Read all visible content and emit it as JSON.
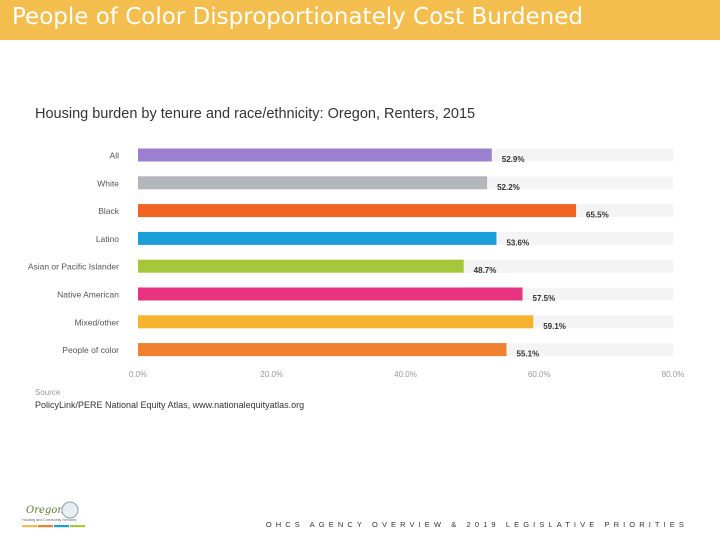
{
  "header": {
    "title": "People of Color Disproportionately Cost Burdened"
  },
  "chart_data": {
    "type": "bar",
    "orientation": "horizontal",
    "title": "Housing burden by tenure and race/ethnicity: Oregon, Renters, 2015",
    "categories": [
      "All",
      "White",
      "Black",
      "Latino",
      "Asian or Pacific Islander",
      "Native American",
      "Mixed/other",
      "People of color"
    ],
    "values": [
      52.9,
      52.2,
      65.5,
      53.6,
      48.7,
      57.5,
      59.1,
      55.1
    ],
    "value_labels": [
      "52.9%",
      "52.2%",
      "65.5%",
      "53.6%",
      "48.7%",
      "57.5%",
      "59.1%",
      "55.1%"
    ],
    "colors": [
      "#9b7fd0",
      "#b3b6bb",
      "#f26422",
      "#1a9fd8",
      "#a5c83a",
      "#e8337e",
      "#f6b42e",
      "#f07f2f"
    ],
    "xticks": [
      "0.0%",
      "20.0%",
      "40.0%",
      "60.0%",
      "80.0%"
    ],
    "xlim": [
      0,
      80
    ],
    "grid": false
  },
  "source": {
    "label": "Source",
    "text": "PolicyLink/PERE National Equity Atlas, www.nationalequityatlas.org"
  },
  "logo": {
    "text": "Oregon",
    "subtext": "Housing and Community Services"
  },
  "footer": {
    "text": "OHCS AGENCY OVERVIEW & 2019 LEGISLATIVE PRIORITIES"
  }
}
